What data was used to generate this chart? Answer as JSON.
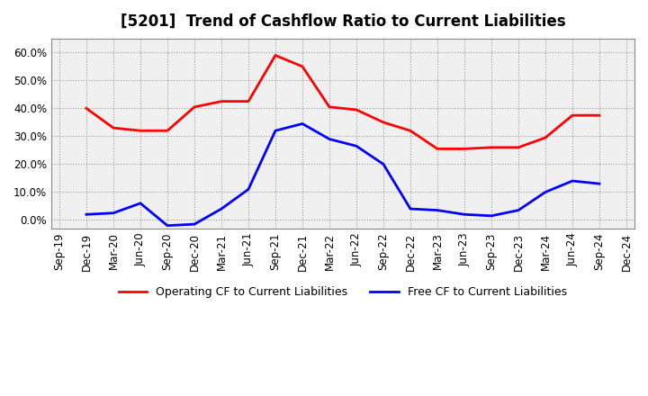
{
  "title": "[5201]  Trend of Cashflow Ratio to Current Liabilities",
  "x_labels": [
    "Sep-19",
    "Dec-19",
    "Mar-20",
    "Jun-20",
    "Sep-20",
    "Dec-20",
    "Mar-21",
    "Jun-21",
    "Sep-21",
    "Dec-21",
    "Mar-22",
    "Jun-22",
    "Sep-22",
    "Dec-22",
    "Mar-23",
    "Jun-23",
    "Sep-23",
    "Dec-23",
    "Mar-24",
    "Jun-24",
    "Sep-24",
    "Dec-24"
  ],
  "operating_cf": [
    null,
    40.0,
    33.0,
    32.0,
    32.0,
    40.5,
    42.5,
    42.5,
    59.0,
    55.0,
    40.5,
    39.5,
    35.0,
    32.0,
    25.5,
    25.5,
    26.0,
    26.0,
    29.5,
    37.5,
    37.5,
    null
  ],
  "free_cf": [
    null,
    2.0,
    2.5,
    6.0,
    -2.0,
    -1.5,
    4.0,
    11.0,
    32.0,
    34.5,
    29.0,
    26.5,
    20.0,
    4.0,
    3.5,
    2.0,
    1.5,
    3.5,
    10.0,
    14.0,
    13.0,
    null
  ],
  "operating_cf_color": "#FF0000",
  "free_cf_color": "#0000FF",
  "legend_operating": "Operating CF to Current Liabilities",
  "legend_free": "Free CF to Current Liabilities",
  "ylim": [
    -3,
    65
  ],
  "yticks": [
    0.0,
    10.0,
    20.0,
    30.0,
    40.0,
    50.0,
    60.0
  ],
  "background_color": "#FFFFFF",
  "plot_bg_color": "#F0F0F0",
  "grid_color": "#999999",
  "title_fontsize": 12,
  "tick_fontsize": 8.5
}
